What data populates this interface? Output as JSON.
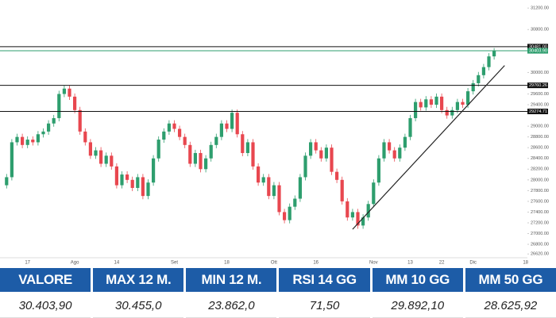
{
  "chart_data": {
    "type": "candlestick",
    "categories": [
      null,
      null,
      null,
      null,
      "17",
      null,
      null,
      null,
      null,
      null,
      null,
      null,
      null,
      "Ago",
      null,
      null,
      null,
      null,
      null,
      null,
      null,
      "14",
      null,
      null,
      null,
      null,
      null,
      null,
      null,
      null,
      null,
      null,
      "Set",
      null,
      null,
      null,
      null,
      null,
      null,
      null,
      null,
      null,
      "18",
      null,
      null,
      null,
      null,
      null,
      null,
      null,
      null,
      "Ott",
      null,
      null,
      null,
      null,
      null,
      null,
      null,
      "16",
      null,
      null,
      null,
      null,
      null,
      null,
      null,
      null,
      null,
      null,
      "Nov",
      null,
      null,
      null,
      null,
      null,
      null,
      "13",
      null,
      null,
      null,
      null,
      null,
      "22",
      null,
      null,
      null,
      null,
      null,
      "Dic",
      null,
      null,
      null,
      null,
      null,
      null,
      null,
      null,
      null,
      "18"
    ],
    "open": [
      27900,
      28050,
      28700,
      28800,
      28650,
      28750,
      28700,
      28850,
      28900,
      29050,
      29150,
      29600,
      29700,
      29550,
      29300,
      28900,
      28700,
      28450,
      28550,
      28300,
      28450,
      28250,
      27900,
      28100,
      28000,
      27850,
      28050,
      27700,
      27950,
      28400,
      28750,
      28900,
      29050,
      28950,
      28800,
      28650,
      28300,
      28500,
      28200,
      28400,
      28650,
      28800,
      29050,
      28950,
      29250,
      28850,
      28500,
      28700,
      28250,
      27950,
      28050,
      27700,
      27900,
      27400,
      27250,
      27500,
      27650,
      28050,
      28450,
      28700,
      28550,
      28400,
      28600,
      28150,
      28000,
      27600,
      27300,
      27400,
      27150,
      27300,
      27550,
      27950,
      28400,
      28700,
      28550,
      28400,
      28600,
      28800,
      29150,
      29450,
      29350,
      29500,
      29400,
      29550,
      29300,
      29200,
      29300,
      29450,
      29400,
      29650,
      29800,
      29950,
      30100,
      30300,
      null,
      null,
      null,
      null,
      null,
      null
    ],
    "high": [
      28110,
      28760,
      28860,
      28860,
      28810,
      28810,
      28910,
      28960,
      29110,
      29210,
      29660,
      29760,
      29760,
      29610,
      29360,
      28960,
      28760,
      28610,
      28610,
      28510,
      28510,
      28310,
      28160,
      28160,
      28060,
      28110,
      28110,
      28010,
      28460,
      28810,
      28960,
      29110,
      29110,
      29010,
      28860,
      28710,
      28560,
      28560,
      28460,
      28710,
      28860,
      29110,
      29110,
      29310,
      29310,
      28910,
      28760,
      28760,
      28310,
      28110,
      28110,
      27960,
      27960,
      27460,
      27560,
      27710,
      28110,
      28510,
      28760,
      28760,
      28610,
      28660,
      28660,
      28210,
      28060,
      27660,
      27460,
      27460,
      27360,
      27610,
      28010,
      28460,
      28760,
      28760,
      28610,
      28660,
      28860,
      29210,
      29510,
      29510,
      29560,
      29560,
      29610,
      29610,
      29360,
      29360,
      29510,
      29510,
      29710,
      29860,
      30010,
      30160,
      30360,
      30455,
      null,
      null,
      null,
      null,
      null,
      null
    ],
    "low": [
      27840,
      27990,
      28640,
      28590,
      28590,
      28640,
      28640,
      28790,
      28840,
      28990,
      29090,
      29540,
      29490,
      29240,
      28840,
      28640,
      28390,
      28390,
      28240,
      28240,
      28190,
      27840,
      27840,
      27940,
      27790,
      27790,
      27640,
      27640,
      27890,
      28340,
      28690,
      28840,
      28890,
      28740,
      28590,
      28240,
      28240,
      28140,
      28140,
      28340,
      28590,
      28740,
      28890,
      28890,
      28790,
      28440,
      28440,
      28190,
      27890,
      27890,
      27640,
      27640,
      27340,
      27190,
      27190,
      27440,
      27590,
      27990,
      28390,
      28490,
      28340,
      28340,
      28090,
      27940,
      27540,
      27240,
      27240,
      27090,
      27090,
      27240,
      27490,
      27890,
      28340,
      28490,
      28340,
      28340,
      28540,
      28740,
      29090,
      29290,
      29290,
      29340,
      29340,
      29240,
      29140,
      29140,
      29240,
      29340,
      29340,
      29590,
      29740,
      29890,
      30040,
      30240,
      null,
      null,
      null,
      null,
      null,
      null
    ],
    "close": [
      28050,
      28700,
      28800,
      28650,
      28750,
      28700,
      28850,
      28900,
      29050,
      29150,
      29600,
      29700,
      29550,
      29300,
      28900,
      28700,
      28450,
      28550,
      28300,
      28450,
      28250,
      27900,
      28100,
      28000,
      27850,
      28050,
      27700,
      27950,
      28400,
      28750,
      28900,
      29050,
      28950,
      28800,
      28650,
      28300,
      28500,
      28200,
      28400,
      28650,
      28800,
      29050,
      28950,
      29250,
      28850,
      28500,
      28700,
      28250,
      27950,
      28050,
      27700,
      27900,
      27400,
      27250,
      27500,
      27650,
      28050,
      28450,
      28700,
      28550,
      28400,
      28600,
      28150,
      28000,
      27600,
      27300,
      27400,
      27150,
      27300,
      27550,
      27950,
      28400,
      28700,
      28550,
      28400,
      28600,
      28800,
      29150,
      29450,
      29350,
      29500,
      29400,
      29550,
      29300,
      29200,
      29300,
      29450,
      29400,
      29650,
      29800,
      29950,
      30100,
      30300,
      30403.9,
      null,
      null,
      null,
      null,
      null,
      null
    ],
    "up_color": "#2e9e6e",
    "down_color": "#e8474f",
    "ylim": [
      26550,
      31350
    ],
    "yticks": [
      {
        "value": 31200,
        "label": "31200.00"
      },
      {
        "value": 30800,
        "label": "30800.00"
      },
      {
        "value": 30000,
        "label": "30000.00"
      },
      {
        "value": 29600,
        "label": "29600.00"
      },
      {
        "value": 29400,
        "label": "29400.00"
      },
      {
        "value": 29000,
        "label": "29000.00"
      },
      {
        "value": 28800,
        "label": "28800.00"
      },
      {
        "value": 28600,
        "label": "28600.00"
      },
      {
        "value": 28400,
        "label": "28400.00"
      },
      {
        "value": 28200,
        "label": "28200.00"
      },
      {
        "value": 28000,
        "label": "28000.00"
      },
      {
        "value": 27800,
        "label": "27800.00"
      },
      {
        "value": 27600,
        "label": "27600.00"
      },
      {
        "value": 27400,
        "label": "27400.00"
      },
      {
        "value": 27200,
        "label": "27200.00"
      },
      {
        "value": 27000,
        "label": "27000.00"
      },
      {
        "value": 26800,
        "label": "26800.00"
      },
      {
        "value": 26620,
        "label": "26620.00"
      }
    ],
    "levels": [
      {
        "value": 30481,
        "label": "30481.00",
        "color": "#111111"
      },
      {
        "value": 30403.9,
        "label": "30403.90",
        "color": "#2e9e6e"
      },
      {
        "value": 29760.26,
        "label": "29760.26",
        "color": "#111111"
      },
      {
        "value": 29274.71,
        "label": "29274.71",
        "color": "#111111"
      }
    ],
    "trendline": {
      "x": [
        66,
        95
      ],
      "y": [
        27080,
        30130
      ],
      "color": "#222222"
    }
  },
  "table": {
    "header": [
      "VALORE",
      "MAX 12 M.",
      "MIN 12 M.",
      "RSI 14 GG",
      "MM 10 GG",
      "MM 50 GG"
    ],
    "rows": [
      [
        "30.403,90",
        "30.455,0",
        "23.862,0",
        "71,50",
        "29.892,10",
        "28.625,92"
      ]
    ]
  }
}
